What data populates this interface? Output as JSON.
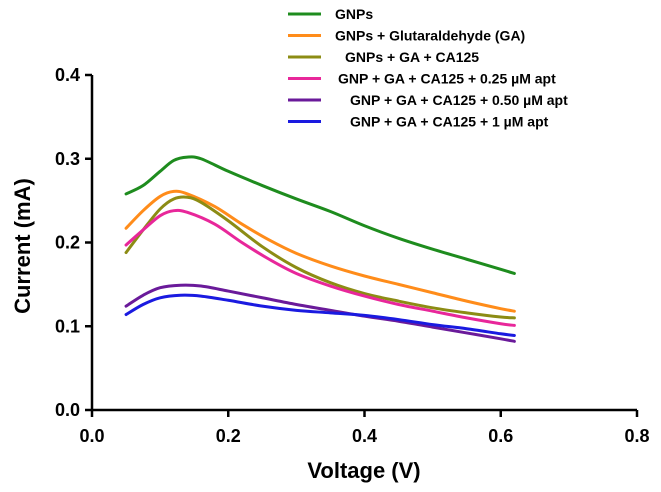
{
  "chart_data": {
    "type": "line",
    "xlabel": "Voltage (V)",
    "ylabel": "Current (mA)",
    "xlim": [
      0.0,
      0.8
    ],
    "ylim": [
      0.0,
      0.4
    ],
    "x_ticks": [
      "0.0",
      "0.2",
      "0.4",
      "0.6",
      "0.8"
    ],
    "y_ticks": [
      "0.0",
      "0.1",
      "0.2",
      "0.3",
      "0.4"
    ],
    "grid": false,
    "legend_position": "top-right",
    "series": [
      {
        "name": "GNPs",
        "color": "#1e8c1e",
        "points": [
          [
            0.05,
            0.258
          ],
          [
            0.075,
            0.268
          ],
          [
            0.1,
            0.285
          ],
          [
            0.12,
            0.298
          ],
          [
            0.14,
            0.302
          ],
          [
            0.16,
            0.3
          ],
          [
            0.2,
            0.285
          ],
          [
            0.25,
            0.268
          ],
          [
            0.3,
            0.252
          ],
          [
            0.35,
            0.237
          ],
          [
            0.4,
            0.22
          ],
          [
            0.45,
            0.205
          ],
          [
            0.5,
            0.192
          ],
          [
            0.55,
            0.18
          ],
          [
            0.6,
            0.168
          ],
          [
            0.62,
            0.163
          ]
        ]
      },
      {
        "name": "GNPs + Glutaraldehyde (GA)",
        "color": "#ff8c1a",
        "points": [
          [
            0.05,
            0.217
          ],
          [
            0.075,
            0.238
          ],
          [
            0.1,
            0.255
          ],
          [
            0.12,
            0.261
          ],
          [
            0.14,
            0.258
          ],
          [
            0.18,
            0.243
          ],
          [
            0.22,
            0.222
          ],
          [
            0.26,
            0.203
          ],
          [
            0.3,
            0.187
          ],
          [
            0.35,
            0.172
          ],
          [
            0.4,
            0.16
          ],
          [
            0.45,
            0.15
          ],
          [
            0.5,
            0.14
          ],
          [
            0.55,
            0.13
          ],
          [
            0.6,
            0.121
          ],
          [
            0.62,
            0.118
          ]
        ]
      },
      {
        "name": "GNPs + GA + CA125",
        "color": "#8c8c14",
        "points": [
          [
            0.05,
            0.188
          ],
          [
            0.075,
            0.215
          ],
          [
            0.1,
            0.24
          ],
          [
            0.12,
            0.252
          ],
          [
            0.14,
            0.254
          ],
          [
            0.16,
            0.248
          ],
          [
            0.2,
            0.226
          ],
          [
            0.25,
            0.195
          ],
          [
            0.3,
            0.17
          ],
          [
            0.35,
            0.152
          ],
          [
            0.4,
            0.139
          ],
          [
            0.45,
            0.13
          ],
          [
            0.5,
            0.122
          ],
          [
            0.55,
            0.116
          ],
          [
            0.6,
            0.111
          ],
          [
            0.62,
            0.11
          ]
        ]
      },
      {
        "name": "GNP + GA + CA125 + 0.25 µM apt",
        "color": "#e8279a",
        "points": [
          [
            0.05,
            0.197
          ],
          [
            0.075,
            0.215
          ],
          [
            0.1,
            0.232
          ],
          [
            0.12,
            0.238
          ],
          [
            0.14,
            0.236
          ],
          [
            0.18,
            0.222
          ],
          [
            0.22,
            0.2
          ],
          [
            0.26,
            0.18
          ],
          [
            0.3,
            0.163
          ],
          [
            0.35,
            0.148
          ],
          [
            0.4,
            0.136
          ],
          [
            0.45,
            0.126
          ],
          [
            0.5,
            0.118
          ],
          [
            0.55,
            0.11
          ],
          [
            0.6,
            0.103
          ],
          [
            0.62,
            0.101
          ]
        ]
      },
      {
        "name": "GNP + GA + CA125 + 0.50 µM apt",
        "color": "#6a1a9a",
        "points": [
          [
            0.05,
            0.124
          ],
          [
            0.075,
            0.137
          ],
          [
            0.1,
            0.146
          ],
          [
            0.13,
            0.149
          ],
          [
            0.16,
            0.148
          ],
          [
            0.2,
            0.142
          ],
          [
            0.25,
            0.134
          ],
          [
            0.3,
            0.126
          ],
          [
            0.35,
            0.119
          ],
          [
            0.4,
            0.112
          ],
          [
            0.45,
            0.106
          ],
          [
            0.5,
            0.099
          ],
          [
            0.55,
            0.092
          ],
          [
            0.6,
            0.085
          ],
          [
            0.62,
            0.082
          ]
        ]
      },
      {
        "name": "GNP + GA + CA125 + 1 µM apt",
        "color": "#1a1ae0",
        "points": [
          [
            0.05,
            0.114
          ],
          [
            0.075,
            0.126
          ],
          [
            0.1,
            0.134
          ],
          [
            0.13,
            0.137
          ],
          [
            0.16,
            0.136
          ],
          [
            0.2,
            0.131
          ],
          [
            0.25,
            0.124
          ],
          [
            0.3,
            0.119
          ],
          [
            0.35,
            0.116
          ],
          [
            0.4,
            0.113
          ],
          [
            0.45,
            0.108
          ],
          [
            0.5,
            0.102
          ],
          [
            0.55,
            0.097
          ],
          [
            0.6,
            0.091
          ],
          [
            0.62,
            0.089
          ]
        ]
      }
    ]
  }
}
